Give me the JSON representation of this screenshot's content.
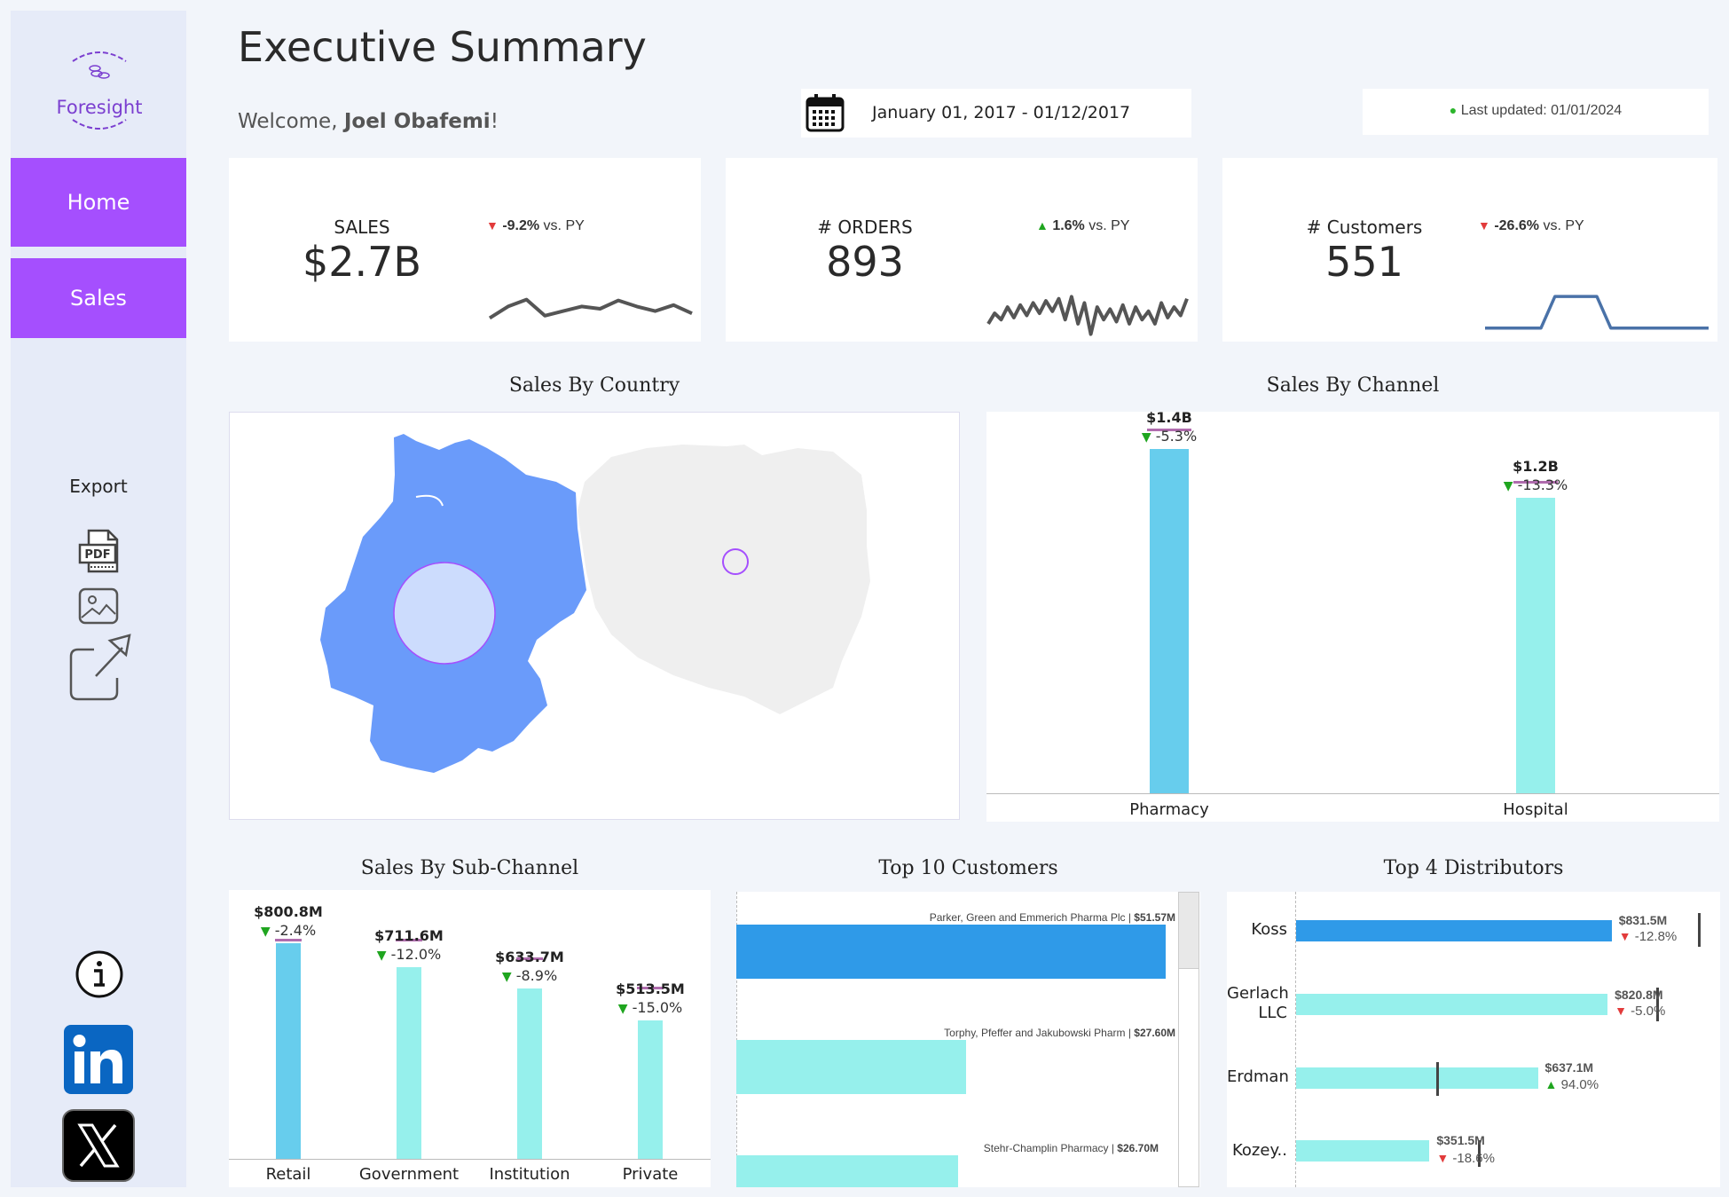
{
  "app": {
    "brand": "Foresight"
  },
  "sidebar": {
    "nav": [
      {
        "label": "Home"
      },
      {
        "label": "Sales"
      }
    ],
    "export_label": "Export",
    "pdf_label": "PDF"
  },
  "header": {
    "title": "Executive Summary",
    "welcome_prefix": "Welcome, ",
    "user_name": "Joel Obafemi",
    "welcome_suffix": "!",
    "date_range": "January 01, 2017 - 01/12/2017",
    "last_updated": "Last updated: 01/01/2024"
  },
  "kpis": [
    {
      "label": "SALES",
      "value": "$2.7B",
      "delta": "-9.2%",
      "direction": "down",
      "suffix": " vs. PY",
      "sparkline": [
        0.3,
        0.55,
        0.7,
        0.35,
        0.45,
        0.55,
        0.5,
        0.68,
        0.55,
        0.45,
        0.58,
        0.4
      ]
    },
    {
      "label": "# ORDERS",
      "value": "893",
      "delta": "1.6%",
      "direction": "up",
      "suffix": " vs. PY",
      "sparkline": [
        0.3,
        0.55,
        0.4,
        0.7,
        0.45,
        0.75,
        0.5,
        0.8,
        0.55,
        0.85,
        0.6,
        0.9,
        0.4,
        0.95,
        0.3,
        0.8,
        0.05,
        0.7,
        0.4,
        0.65,
        0.35,
        0.75,
        0.3,
        0.7,
        0.4,
        0.6,
        0.3,
        0.8,
        0.45,
        0.7,
        0.5,
        0.9
      ]
    },
    {
      "label": "# Customers",
      "value": "551",
      "delta": "-26.6%",
      "direction": "down",
      "suffix": " vs. PY",
      "sparkline": [
        0.1,
        0.1,
        0.1,
        0.1,
        0.1,
        0.95,
        0.95,
        0.95,
        0.95,
        0.1,
        0.1,
        0.1,
        0.1,
        0.1,
        0.1,
        0.1,
        0.1
      ]
    }
  ],
  "sections": {
    "country": "Sales By Country",
    "channel": "Sales By Channel",
    "sub_channel": "Sales By Sub-Channel",
    "customers": "Top 10 Customers",
    "distributors": "Top 4 Distributors"
  },
  "colors": {
    "accent": "#a54ffe",
    "primary_bar": "#67cded",
    "secondary_bar": "#96f0ec",
    "customer_top": "#2f9ae8",
    "target_mark": "#b06cae",
    "down": "#e23b3b",
    "up": "#1fa51f"
  },
  "chart_data": [
    {
      "type": "bar",
      "title": "Sales By Channel",
      "categories": [
        "Pharmacy",
        "Hospital"
      ],
      "values": [
        1.4,
        1.2
      ],
      "value_labels": [
        "$1.4B",
        "$1.2B"
      ],
      "deltas": [
        "-5.3%",
        "-13.3%"
      ],
      "delta_directions": [
        "down_good",
        "down_good"
      ],
      "targets": [
        1.48,
        1.27
      ],
      "ylim": [
        0,
        1.55
      ]
    },
    {
      "type": "bar",
      "title": "Sales By Sub-Channel",
      "categories": [
        "Retail",
        "Government",
        "Institution",
        "Private"
      ],
      "values": [
        800.8,
        711.6,
        633.7,
        513.5
      ],
      "value_labels": [
        "$800.8M",
        "$711.6M",
        "$633.7M",
        "$513.5M"
      ],
      "deltas": [
        "-2.4%",
        "-12.0%",
        "-8.9%",
        "-15.0%"
      ],
      "delta_directions": [
        "down_good",
        "down_good",
        "down_good",
        "down_good"
      ],
      "targets": [
        820,
        820,
        750,
        640
      ],
      "ylim": [
        0,
        1000
      ]
    },
    {
      "type": "bar",
      "orientation": "horizontal",
      "title": "Top 10 Customers",
      "categories": [
        "Parker, Green and Emmerich Pharma Plc",
        "Torphy, Pfeffer and Jakubowski Pharm",
        "Stehr-Champlin Pharmacy"
      ],
      "values": [
        51.57,
        27.6,
        26.7
      ],
      "value_labels": [
        "$51.57M",
        "$27.60M",
        "$26.70M"
      ],
      "xlim": [
        0,
        53
      ]
    },
    {
      "type": "bar",
      "orientation": "horizontal",
      "title": "Top 4 Distributors",
      "categories": [
        "Koss",
        "Gerlach LLC",
        "Erdman",
        "Kozey.."
      ],
      "values": [
        831.5,
        820.8,
        637.1,
        351.5
      ],
      "value_labels": [
        "$831.5M",
        "$820.8M",
        "$637.1M",
        "$351.5M"
      ],
      "deltas": [
        "-12.8%",
        "-5.0%",
        "94.0%",
        "-18.6%"
      ],
      "delta_directions": [
        "down",
        "down",
        "up",
        "down"
      ],
      "targets": [
        1060,
        950,
        370,
        480
      ],
      "xlim": [
        0,
        1080
      ]
    },
    {
      "type": "map",
      "title": "Sales By Country",
      "categories": [
        "Germany",
        "Poland"
      ]
    }
  ]
}
